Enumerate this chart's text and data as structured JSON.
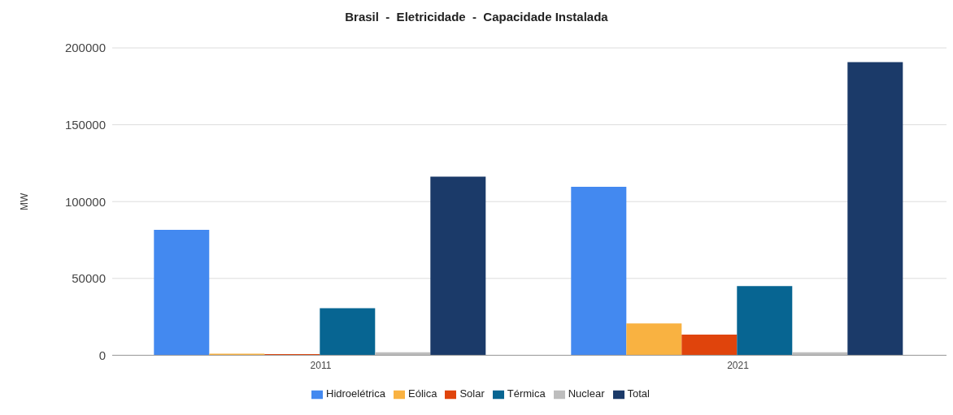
{
  "chart_data": {
    "type": "bar",
    "title": "Brasil  -  Eletricidade  -  Capacidade Instalada",
    "ylabel": "MW",
    "categories": [
      "2011",
      "2021"
    ],
    "series": [
      {
        "name": "Hidroelétrica",
        "color": "#4389f0",
        "values": [
          81600,
          109600
        ]
      },
      {
        "name": "Eólica",
        "color": "#f9b241",
        "values": [
          1000,
          20700
        ]
      },
      {
        "name": "Solar",
        "color": "#e0440c",
        "values": [
          700,
          13400
        ]
      },
      {
        "name": "Térmica",
        "color": "#076592",
        "values": [
          30600,
          45000
        ]
      },
      {
        "name": "Nuclear",
        "color": "#bdbdbd",
        "values": [
          1900,
          2000
        ]
      },
      {
        "name": "Total",
        "color": "#1b3a69",
        "values": [
          116300,
          190700
        ]
      }
    ],
    "ylim": [
      0,
      200000
    ],
    "yticks": [
      0,
      50000,
      100000,
      150000,
      200000
    ],
    "grid": "y",
    "legend": "bottom"
  }
}
